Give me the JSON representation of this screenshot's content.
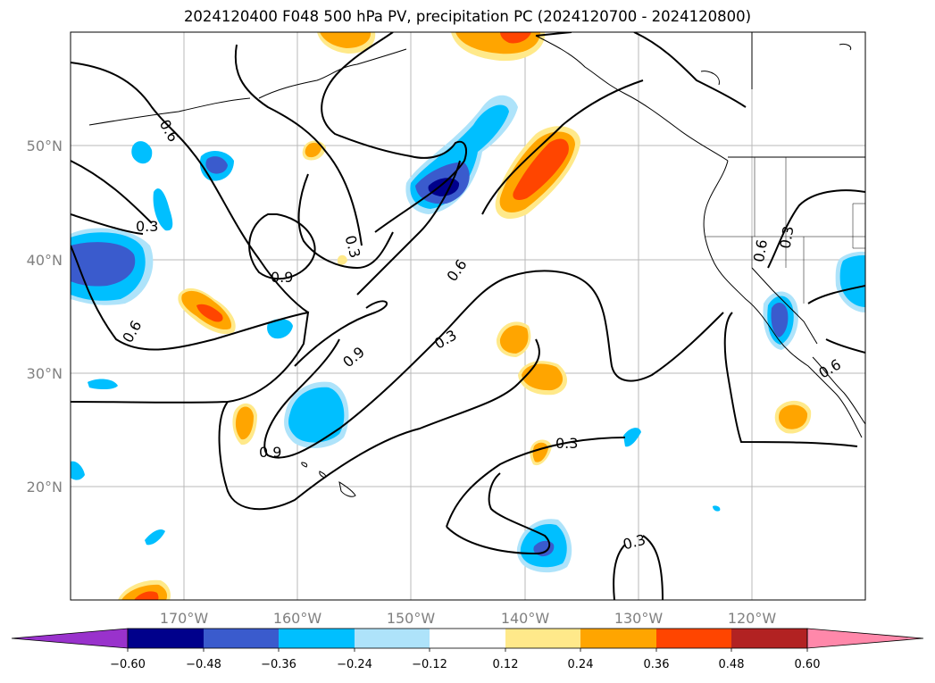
{
  "title": "2024120400 F048 500 hPa PV, precipitation PC (2024120700 - 2024120800)",
  "map": {
    "lon_labels": [
      "170°W",
      "160°W",
      "150°W",
      "140°W",
      "130°W",
      "120°W"
    ],
    "lat_labels": [
      "50°N",
      "40°N",
      "30°N",
      "20°N"
    ],
    "contour_labels": [
      "0.6",
      "0.3",
      "0.9",
      "0.3",
      "0.6",
      "0.6",
      "0.9",
      "0.9",
      "0.3",
      "0.6",
      "0.6",
      "0.3",
      "0.3",
      "0.3",
      "0.6"
    ]
  },
  "colorbar": {
    "tick_labels": [
      "−0.60",
      "−0.48",
      "−0.36",
      "−0.24",
      "−0.12",
      "0.12",
      "0.24",
      "0.36",
      "0.48",
      "0.60"
    ],
    "colors": [
      "#9932CC",
      "#00008B",
      "#3A5BCD",
      "#00BFFF",
      "#AEE3FA",
      "#FFFFFF",
      "#FFE98A",
      "#FFA500",
      "#FF4500",
      "#B22222",
      "#FF88AA"
    ]
  }
}
